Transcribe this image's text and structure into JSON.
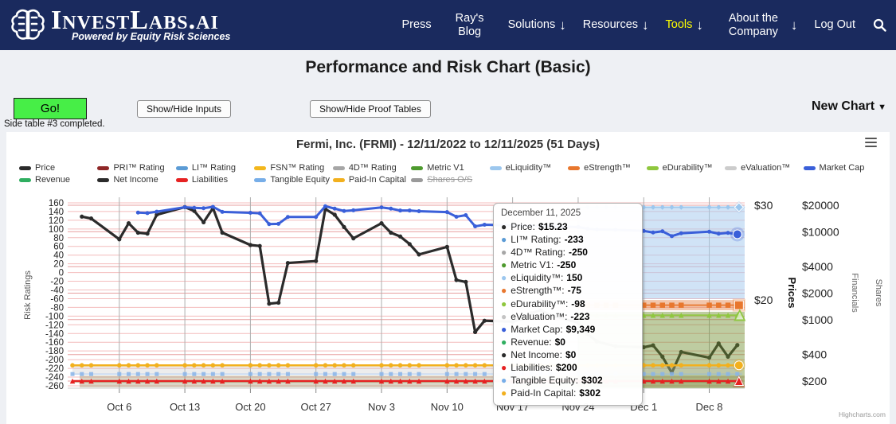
{
  "navbar": {
    "brand": "InvestLabs.ai",
    "tagline": "Powered by Equity Risk Sciences",
    "dropdown_arrow": "↓",
    "items": [
      {
        "label": "Press",
        "arrow": false,
        "two_line": false,
        "active": false
      },
      {
        "label": "Ray's Blog",
        "arrow": false,
        "two_line": true,
        "active": false
      },
      {
        "label": "Solutions",
        "arrow": true,
        "two_line": false,
        "active": false
      },
      {
        "label": "Resources",
        "arrow": true,
        "two_line": false,
        "active": false
      },
      {
        "label": "Tools",
        "arrow": true,
        "two_line": false,
        "active": true
      },
      {
        "label": "About the Company",
        "arrow": true,
        "two_line": true,
        "wide": true,
        "active": false
      },
      {
        "label": "Log Out",
        "arrow": false,
        "two_line": false,
        "active": false
      }
    ],
    "search_icon": "magnifier"
  },
  "page": {
    "title": "Performance and Risk Chart (Basic)",
    "go_button": "Go!",
    "show_hide_inputs": "Show/Hide Inputs",
    "show_hide_proof": "Show/Hide Proof Tables",
    "new_chart": "New Chart",
    "new_chart_caret": "▼",
    "status": "Side table #3 completed."
  },
  "chart": {
    "title": "Fermi, Inc. (FRMI) - 12/11/2022 to 12/11/2025 (51 Days)",
    "credit": "Highcharts.com",
    "legend": {
      "row1": [
        {
          "label": "Price",
          "color": "#2b2b2b"
        },
        {
          "label": "PRI™ Rating",
          "color": "#8f2727"
        },
        {
          "label": "LI™ Rating",
          "color": "#5b9bd5"
        },
        {
          "label": "FSN™ Rating",
          "color": "#f3b71c"
        },
        {
          "label": "4D™ Rating",
          "color": "#a6a6a6"
        },
        {
          "label": "Metric V1",
          "color": "#4e9a2e"
        },
        {
          "label": "eLiquidity™",
          "color": "#9cc7ee"
        },
        {
          "label": "eStrength™",
          "color": "#e8772e"
        },
        {
          "label": "eDurability™",
          "color": "#8fc73e"
        },
        {
          "label": "eValuation™",
          "color": "#cccccc"
        },
        {
          "label": "Market Cap",
          "color": "#3a5fd9"
        }
      ],
      "row2": [
        {
          "label": "Revenue",
          "color": "#2fae60"
        },
        {
          "label": "Net Income",
          "color": "#2b2b2b"
        },
        {
          "label": "Liabilities",
          "color": "#e62222"
        },
        {
          "label": "Tangible Equity",
          "color": "#77aee8"
        },
        {
          "label": "Paid-In Capital",
          "color": "#f2b01e"
        },
        {
          "label": "Shares O/S",
          "color": "#9a9a9a",
          "disabled": true
        }
      ]
    }
  },
  "tooltip": {
    "title": "December 11, 2025",
    "rows": [
      {
        "label": "Price",
        "value": "$15.23",
        "color": "#2b2b2b"
      },
      {
        "label": "LI™ Rating",
        "value": "-233",
        "color": "#5b9bd5"
      },
      {
        "label": "4D™ Rating",
        "value": "-250",
        "color": "#a6a6a6"
      },
      {
        "label": "Metric V1",
        "value": "-250",
        "color": "#4e9a2e"
      },
      {
        "label": "eLiquidity™",
        "value": "150",
        "color": "#9cc7ee"
      },
      {
        "label": "eStrength™",
        "value": "-75",
        "color": "#e8772e"
      },
      {
        "label": "eDurability™",
        "value": "-98",
        "color": "#8fc73e"
      },
      {
        "label": "eValuation™",
        "value": "-223",
        "color": "#c4c4c4"
      },
      {
        "label": "Market Cap",
        "value": "$9,349",
        "color": "#3a5fd9"
      },
      {
        "label": "Revenue",
        "value": "$0",
        "color": "#2fae60"
      },
      {
        "label": "Net Income",
        "value": "$0",
        "color": "#2b2b2b"
      },
      {
        "label": "Liabilities",
        "value": "$200",
        "color": "#e62222"
      },
      {
        "label": "Tangible Equity",
        "value": "$302",
        "color": "#77aee8"
      },
      {
        "label": "Paid-In Capital",
        "value": "$302",
        "color": "#f2b01e"
      }
    ]
  },
  "chart_data": {
    "type": "line",
    "title": "Fermi, Inc. (FRMI) - 12/11/2022 to 12/11/2025 (51 Days)",
    "x_axis": {
      "type": "datetime",
      "tick_labels": [
        "Oct 6",
        "Oct 13",
        "Oct 20",
        "Oct 27",
        "Nov 3",
        "Nov 10",
        "Nov 17",
        "Nov 24",
        "Dec 1",
        "Dec 8"
      ],
      "tick_day_offsets": [
        5,
        12,
        19,
        26,
        33,
        40,
        47,
        54,
        61,
        68
      ],
      "day0": "Oct 1, 2025",
      "last_day": 71
    },
    "y_axes": {
      "risk_ratings": {
        "label": "Risk Ratings",
        "ticks": [
          160,
          140,
          120,
          100,
          80,
          60,
          40,
          20,
          0,
          -20,
          -40,
          -60,
          -80,
          -100,
          -120,
          -140,
          -160,
          -180,
          -200,
          -220,
          -240,
          -260
        ]
      },
      "prices": {
        "label": "Prices",
        "tick_labels": [
          "$30",
          "$20"
        ],
        "tick_values": [
          30,
          20
        ]
      },
      "financials": {
        "label": "Financials",
        "scale": "log",
        "tick_labels": [
          "$20000",
          "$10000",
          "$4000",
          "$2000",
          "$1000",
          "$400",
          "$200"
        ],
        "tick_values": [
          20000,
          10000,
          4000,
          2000,
          1000,
          400,
          200
        ]
      },
      "shares": {
        "label": "Shares",
        "tick_labels": []
      }
    },
    "series": {
      "price": {
        "name": "Price",
        "color": "#2b2b2b",
        "axis": "price",
        "points": [
          [
            1,
            28.8
          ],
          [
            2,
            28.6
          ],
          [
            5,
            26.4
          ],
          [
            6,
            28.1
          ],
          [
            7,
            27.1
          ],
          [
            8,
            27.0
          ],
          [
            9,
            29.0
          ],
          [
            12,
            29.8
          ],
          [
            13,
            29.4
          ],
          [
            14,
            28.2
          ],
          [
            15,
            29.7
          ],
          [
            16,
            27.1
          ],
          [
            19,
            25.8
          ],
          [
            20,
            25.7
          ],
          [
            21,
            19.6
          ],
          [
            22,
            19.7
          ],
          [
            23,
            23.9
          ],
          [
            26,
            24.1
          ],
          [
            27,
            29.6
          ],
          [
            28,
            29.0
          ],
          [
            29,
            27.7
          ],
          [
            30,
            26.5
          ],
          [
            33,
            28.1
          ],
          [
            34,
            27.1
          ],
          [
            35,
            26.7
          ],
          [
            36,
            25.9
          ],
          [
            37,
            24.8
          ],
          [
            40,
            25.6
          ],
          [
            41,
            22.1
          ],
          [
            42,
            21.9
          ],
          [
            43,
            16.6
          ],
          [
            44,
            17.8
          ],
          [
            47,
            17.7
          ],
          [
            48,
            18.0
          ],
          [
            49,
            18.6
          ],
          [
            50,
            18.9
          ],
          [
            51,
            18.4
          ],
          [
            54,
            17.6
          ],
          [
            55,
            16.4
          ],
          [
            56,
            15.6
          ],
          [
            58,
            15.1
          ],
          [
            61,
            15.0
          ],
          [
            62,
            15.2
          ],
          [
            63,
            14.0
          ],
          [
            64,
            12.3
          ],
          [
            65,
            14.5
          ],
          [
            68,
            13.9
          ],
          [
            69,
            15.4
          ],
          [
            70,
            14.0
          ],
          [
            71,
            15.23
          ]
        ],
        "last_value_label": "$15.23"
      },
      "market_cap": {
        "name": "Market Cap",
        "color": "#3a5fd9",
        "axis": "financials",
        "points": [
          [
            7,
            16500
          ],
          [
            8,
            16300
          ],
          [
            9,
            16900
          ],
          [
            12,
            19000
          ],
          [
            13,
            18700
          ],
          [
            14,
            18500
          ],
          [
            15,
            19200
          ],
          [
            16,
            16800
          ],
          [
            19,
            16400
          ],
          [
            20,
            16200
          ],
          [
            21,
            12200
          ],
          [
            22,
            12300
          ],
          [
            23,
            14700
          ],
          [
            26,
            14700
          ],
          [
            27,
            19500
          ],
          [
            28,
            18300
          ],
          [
            29,
            17200
          ],
          [
            30,
            17500
          ],
          [
            33,
            18900
          ],
          [
            34,
            18300
          ],
          [
            35,
            17400
          ],
          [
            36,
            17400
          ],
          [
            37,
            17100
          ],
          [
            40,
            16700
          ],
          [
            41,
            14800
          ],
          [
            42,
            15400
          ],
          [
            43,
            11500
          ],
          [
            44,
            12000
          ],
          [
            47,
            11800
          ],
          [
            48,
            11600
          ],
          [
            49,
            11700
          ],
          [
            50,
            11600
          ],
          [
            51,
            11500
          ],
          [
            54,
            11300
          ],
          [
            55,
            10800
          ],
          [
            56,
            10600
          ],
          [
            58,
            10500
          ],
          [
            61,
            10200
          ],
          [
            62,
            9800
          ],
          [
            63,
            10100
          ],
          [
            64,
            8900
          ],
          [
            65,
            9600
          ],
          [
            68,
            10000
          ],
          [
            69,
            9500
          ],
          [
            70,
            9700
          ],
          [
            71,
            9349
          ]
        ],
        "last_value_label": "$9,349"
      },
      "li_rating": {
        "name": "LI™ Rating",
        "color": "#8ab4e8",
        "axis": "risk",
        "constant": -233,
        "day_start": 0,
        "day_end": 71
      },
      "fourd_rating": {
        "name": "4D™ Rating",
        "color": "#a6a6a6",
        "axis": "risk",
        "constant": -250,
        "plotted": false
      },
      "metric_v1": {
        "name": "Metric V1",
        "color": "#4e9a2e",
        "axis": "risk",
        "constant": -250,
        "day_start": 0,
        "day_end": 71
      },
      "eliquidity": {
        "name": "eLiquidity™",
        "color": "#9cc7ee",
        "axis": "risk",
        "constant": 150,
        "day_start": 54,
        "day_end": 71
      },
      "estrength": {
        "name": "eStrength™",
        "color": "#e8772e",
        "axis": "risk",
        "constant": -75,
        "day_start": 54,
        "day_end": 71
      },
      "edurability": {
        "name": "eDurability™",
        "color": "#8fc73e",
        "axis": "risk",
        "constant": -98,
        "day_start": 54,
        "day_end": 71
      },
      "evaluation": {
        "name": "eValuation™",
        "color": "#bbbbbb",
        "axis": "risk",
        "constant": -223,
        "day_start": 0,
        "day_end": 71
      },
      "revenue": {
        "name": "Revenue",
        "color": "#2fae60",
        "axis": "financials",
        "constant": 0,
        "plotted": false
      },
      "net_income": {
        "name": "Net Income",
        "color": "#2b2b2b",
        "axis": "financials",
        "constant": 0,
        "plotted": false
      },
      "liabilities": {
        "name": "Liabilities",
        "color": "#e62222",
        "axis": "financials",
        "constant": 200,
        "day_start": 0,
        "day_end": 71
      },
      "tangible_equity": {
        "name": "Tangible Equity",
        "color": "#77aee8",
        "axis": "financials",
        "constant": 302,
        "day_start": 0,
        "day_end": 71
      },
      "paid_in_capital": {
        "name": "Paid-In Capital",
        "color": "#f2b01e",
        "axis": "financials",
        "constant": 302,
        "day_start": 0,
        "day_end": 71
      }
    }
  }
}
